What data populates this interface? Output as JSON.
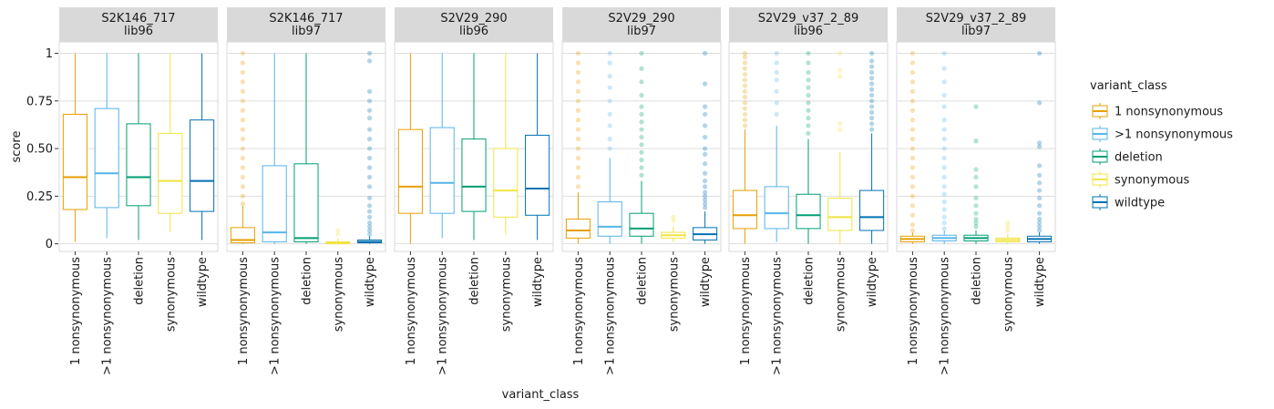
{
  "chart_data": {
    "type": "boxplot",
    "xlabel": "variant_class",
    "ylabel": "score",
    "ylim": [
      -0.04,
      1.06
    ],
    "yticks": [
      {
        "value": 0,
        "label": "0"
      },
      {
        "value": 0.25,
        "label": "0.25"
      },
      {
        "value": 0.5,
        "label": "0.50"
      },
      {
        "value": 0.75,
        "label": "0.75"
      },
      {
        "value": 1,
        "label": "1"
      }
    ],
    "grid": true,
    "legend_position": "right",
    "legend_title": "variant_class",
    "categories": [
      "1 nonsynonymous",
      ">1 nonsynonymous",
      "deletion",
      "synonymous",
      "wildtype"
    ],
    "colors": {
      "1 nonsynonymous": "#E69F00",
      ">1 nonsynonymous": "#56B4E9",
      "deletion": "#009E73",
      "synonymous": "#F0E442",
      "wildtype": "#0072B2"
    },
    "panels": [
      {
        "title": "S2K146_717",
        "subtitle": "lib96",
        "boxes": [
          {
            "category": "1 nonsynonymous",
            "min": 0.01,
            "q1": 0.18,
            "median": 0.35,
            "q3": 0.68,
            "max": 1.0,
            "outliers": []
          },
          {
            "category": ">1 nonsynonymous",
            "min": 0.03,
            "q1": 0.19,
            "median": 0.37,
            "q3": 0.71,
            "max": 1.0,
            "outliers": []
          },
          {
            "category": "deletion",
            "min": 0.02,
            "q1": 0.2,
            "median": 0.35,
            "q3": 0.63,
            "max": 1.0,
            "outliers": []
          },
          {
            "category": "synonymous",
            "min": 0.06,
            "q1": 0.16,
            "median": 0.33,
            "q3": 0.58,
            "max": 1.0,
            "outliers": []
          },
          {
            "category": "wildtype",
            "min": 0.02,
            "q1": 0.17,
            "median": 0.33,
            "q3": 0.65,
            "max": 1.0,
            "outliers": []
          }
        ]
      },
      {
        "title": "S2K146_717",
        "subtitle": "lib97",
        "boxes": [
          {
            "category": "1 nonsynonymous",
            "min": 0.0,
            "q1": 0.005,
            "median": 0.02,
            "q3": 0.085,
            "max": 0.2,
            "outliers": [
              0.21,
              0.25,
              0.3,
              0.35,
              0.4,
              0.45,
              0.5,
              0.55,
              0.6,
              0.65,
              0.7,
              0.75,
              0.8,
              0.85,
              0.9,
              0.95,
              1.0
            ]
          },
          {
            "category": ">1 nonsynonymous",
            "min": 0.0,
            "q1": 0.01,
            "median": 0.06,
            "q3": 0.41,
            "max": 1.0,
            "outliers": []
          },
          {
            "category": "deletion",
            "min": 0.0,
            "q1": 0.01,
            "median": 0.03,
            "q3": 0.42,
            "max": 1.0,
            "outliers": []
          },
          {
            "category": "synonymous",
            "min": 0.0,
            "q1": 0.0,
            "median": 0.005,
            "q3": 0.01,
            "max": 0.03,
            "outliers": [
              0.05,
              0.07
            ]
          },
          {
            "category": "wildtype",
            "min": 0.0,
            "q1": 0.005,
            "median": 0.01,
            "q3": 0.02,
            "max": 0.04,
            "outliers": [
              0.05,
              0.07,
              0.09,
              0.11,
              0.14,
              0.17,
              0.2,
              0.24,
              0.3,
              0.35,
              0.4,
              0.45,
              0.5,
              0.55,
              0.6,
              0.66,
              0.7,
              0.75,
              0.8,
              0.96,
              1.0
            ]
          }
        ]
      },
      {
        "title": "S2V29_290",
        "subtitle": "lib96",
        "boxes": [
          {
            "category": "1 nonsynonymous",
            "min": 0.0,
            "q1": 0.16,
            "median": 0.3,
            "q3": 0.6,
            "max": 1.0,
            "outliers": []
          },
          {
            "category": ">1 nonsynonymous",
            "min": 0.03,
            "q1": 0.16,
            "median": 0.32,
            "q3": 0.61,
            "max": 1.0,
            "outliers": []
          },
          {
            "category": "deletion",
            "min": 0.02,
            "q1": 0.17,
            "median": 0.3,
            "q3": 0.55,
            "max": 1.0,
            "outliers": []
          },
          {
            "category": "synonymous",
            "min": 0.05,
            "q1": 0.14,
            "median": 0.28,
            "q3": 0.5,
            "max": 1.0,
            "outliers": []
          },
          {
            "category": "wildtype",
            "min": 0.02,
            "q1": 0.15,
            "median": 0.29,
            "q3": 0.57,
            "max": 1.0,
            "outliers": []
          }
        ]
      },
      {
        "title": "S2V29_290",
        "subtitle": "lib97",
        "boxes": [
          {
            "category": "1 nonsynonymous",
            "min": 0.0,
            "q1": 0.03,
            "median": 0.07,
            "q3": 0.13,
            "max": 0.27,
            "outliers": [
              0.3,
              0.35,
              0.4,
              0.45,
              0.5,
              0.55,
              0.6,
              0.65,
              0.7,
              0.75,
              0.8,
              0.85,
              0.9,
              0.95,
              1.0
            ]
          },
          {
            "category": ">1 nonsynonymous",
            "min": 0.0,
            "q1": 0.04,
            "median": 0.09,
            "q3": 0.22,
            "max": 0.45,
            "outliers": [
              0.5,
              0.55,
              0.62,
              0.68,
              0.75,
              0.82,
              0.88,
              0.95,
              1.0
            ]
          },
          {
            "category": "deletion",
            "min": 0.0,
            "q1": 0.04,
            "median": 0.08,
            "q3": 0.16,
            "max": 0.33,
            "outliers": [
              0.36,
              0.4,
              0.44,
              0.48,
              0.52,
              0.56,
              0.6,
              0.64,
              0.68,
              0.72,
              0.78,
              0.85,
              0.92,
              1.0
            ]
          },
          {
            "category": "synonymous",
            "min": 0.01,
            "q1": 0.03,
            "median": 0.045,
            "q3": 0.06,
            "max": 0.09,
            "outliers": [
              0.12,
              0.14
            ]
          },
          {
            "category": "wildtype",
            "min": 0.0,
            "q1": 0.02,
            "median": 0.05,
            "q3": 0.085,
            "max": 0.17,
            "outliers": [
              0.19,
              0.21,
              0.23,
              0.25,
              0.27,
              0.3,
              0.33,
              0.37,
              0.42,
              0.47,
              0.5,
              0.56,
              0.62,
              0.68,
              0.72,
              0.84,
              1.0
            ]
          }
        ]
      },
      {
        "title": "S2V29_v37_2_89",
        "subtitle": "lib96",
        "boxes": [
          {
            "category": "1 nonsynonymous",
            "min": 0.0,
            "q1": 0.08,
            "median": 0.15,
            "q3": 0.28,
            "max": 0.6,
            "outliers": [
              0.62,
              0.65,
              0.68,
              0.71,
              0.74,
              0.77,
              0.8,
              0.83,
              0.86,
              0.89,
              0.92,
              0.95,
              0.98,
              1.0
            ]
          },
          {
            "category": ">1 nonsynonymous",
            "min": 0.01,
            "q1": 0.08,
            "median": 0.16,
            "q3": 0.3,
            "max": 0.62,
            "outliers": [
              0.68,
              0.74,
              0.8,
              0.86,
              0.9,
              0.95,
              1.0
            ]
          },
          {
            "category": "deletion",
            "min": 0.0,
            "q1": 0.08,
            "median": 0.15,
            "q3": 0.26,
            "max": 0.55,
            "outliers": [
              0.58,
              0.62,
              0.66,
              0.7,
              0.74,
              0.78,
              0.82,
              0.86,
              0.9,
              0.95,
              1.0
            ]
          },
          {
            "category": "synonymous",
            "min": 0.0,
            "q1": 0.07,
            "median": 0.14,
            "q3": 0.24,
            "max": 0.48,
            "outliers": [
              0.6,
              0.63,
              0.88,
              0.91,
              1.0
            ]
          },
          {
            "category": "wildtype",
            "min": 0.0,
            "q1": 0.07,
            "median": 0.14,
            "q3": 0.28,
            "max": 0.58,
            "outliers": [
              0.6,
              0.63,
              0.66,
              0.69,
              0.72,
              0.75,
              0.78,
              0.81,
              0.84,
              0.87,
              0.9,
              0.93,
              0.96,
              1.0
            ]
          }
        ]
      },
      {
        "title": "S2V29_v37_2_89",
        "subtitle": "lib97",
        "boxes": [
          {
            "category": "1 nonsynonymous",
            "min": 0.0,
            "q1": 0.01,
            "median": 0.025,
            "q3": 0.04,
            "max": 0.06,
            "outliers": [
              0.07,
              0.1,
              0.15,
              0.2,
              0.25,
              0.3,
              0.35,
              0.4,
              0.45,
              0.5,
              0.55,
              0.6,
              0.65,
              0.7,
              0.75,
              0.8,
              0.85,
              0.9,
              0.95,
              1.0
            ]
          },
          {
            "category": ">1 nonsynonymous",
            "min": 0.0,
            "q1": 0.015,
            "median": 0.03,
            "q3": 0.045,
            "max": 0.07,
            "outliers": [
              0.08,
              0.11,
              0.14,
              0.18,
              0.22,
              0.26,
              0.3,
              0.35,
              0.4,
              0.45,
              0.5,
              0.55,
              0.6,
              0.65,
              0.72,
              0.78,
              0.85,
              0.92,
              1.0
            ]
          },
          {
            "category": "deletion",
            "min": 0.0,
            "q1": 0.015,
            "median": 0.03,
            "q3": 0.045,
            "max": 0.07,
            "outliers": [
              0.09,
              0.11,
              0.13,
              0.16,
              0.2,
              0.24,
              0.3,
              0.35,
              0.39,
              0.54,
              0.72
            ]
          },
          {
            "category": "synonymous",
            "min": 0.0,
            "q1": 0.01,
            "median": 0.02,
            "q3": 0.03,
            "max": 0.05,
            "outliers": [
              0.07,
              0.09,
              0.11
            ]
          },
          {
            "category": "wildtype",
            "min": 0.0,
            "q1": 0.01,
            "median": 0.025,
            "q3": 0.04,
            "max": 0.06,
            "outliers": [
              0.07,
              0.09,
              0.11,
              0.13,
              0.16,
              0.2,
              0.24,
              0.28,
              0.32,
              0.36,
              0.41,
              0.51,
              0.53,
              0.74,
              1.0
            ]
          }
        ]
      }
    ]
  }
}
